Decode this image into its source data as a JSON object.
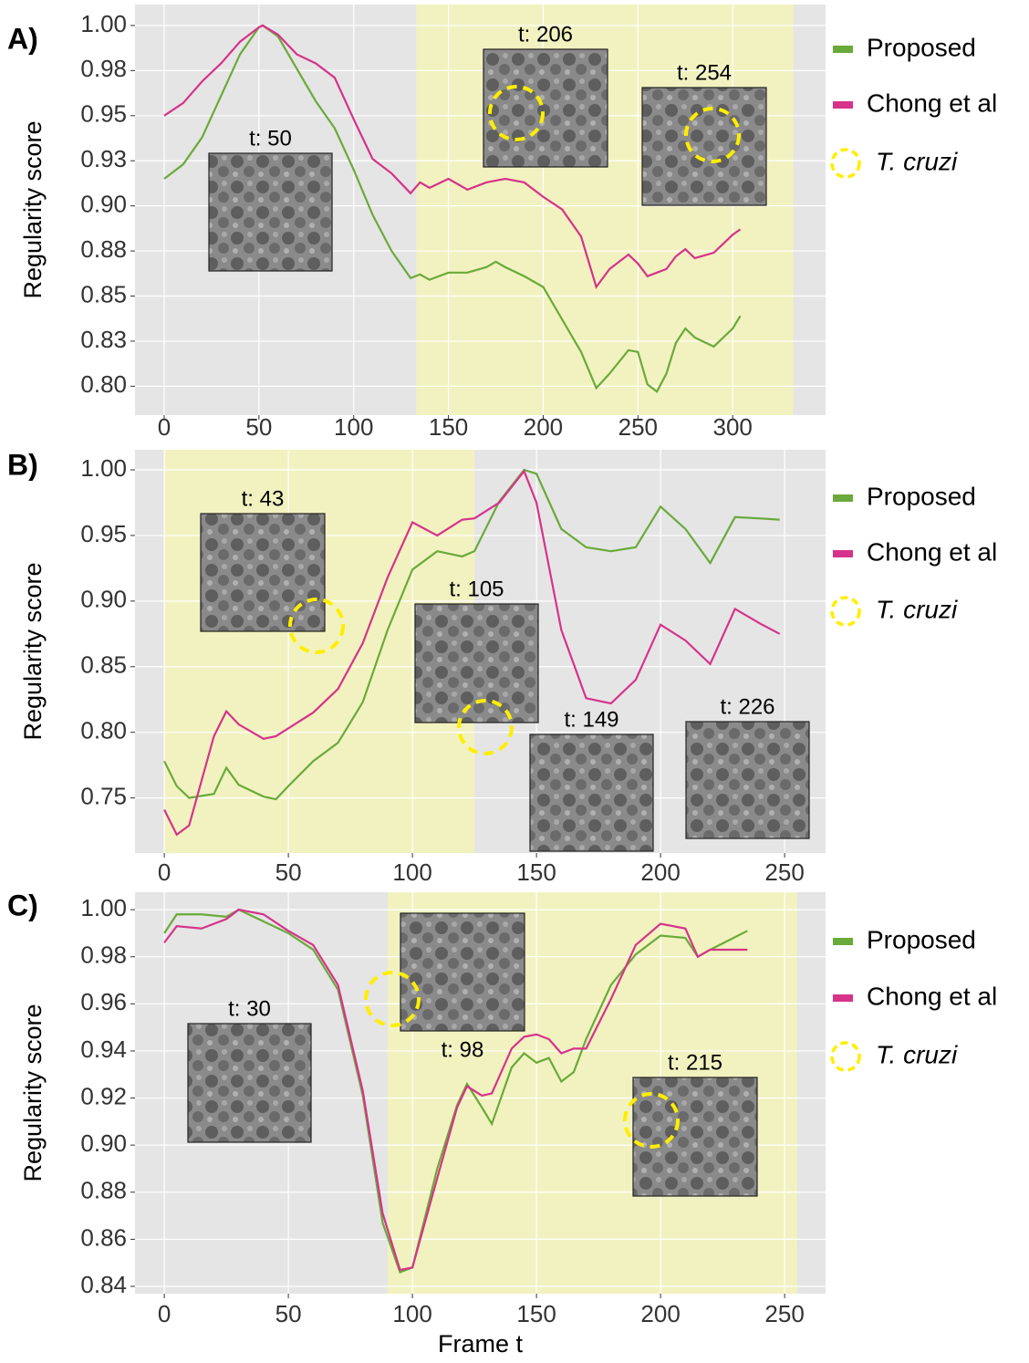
{
  "chart_data": [
    {
      "type": "line",
      "panel_label": "A)",
      "y_label": "Regularity score",
      "highlight_label": "T. cruzi",
      "highlight": [
        133,
        332
      ],
      "highlight_color": "#f2f2c0",
      "xlim": [
        -15.4,
        349
      ],
      "ylim": [
        0.784,
        1.0116
      ],
      "xticks": [
        0,
        50,
        100,
        150,
        200,
        250,
        300
      ],
      "yticks": [
        {
          "value": 0.8,
          "label": "0.80"
        },
        {
          "value": 0.825,
          "label": "0.83"
        },
        {
          "value": 0.85,
          "label": "0.85"
        },
        {
          "value": 0.875,
          "label": "0.88"
        },
        {
          "value": 0.9,
          "label": "0.90"
        },
        {
          "value": 0.925,
          "label": "0.93"
        },
        {
          "value": 0.95,
          "label": "0.95"
        },
        {
          "value": 0.975,
          "label": "0.98"
        },
        {
          "value": 1,
          "label": "1.00"
        }
      ],
      "grid": true,
      "insets": [
        {
          "label": "t: 50"
        },
        {
          "label": "t: 206"
        },
        {
          "label": "t: 254"
        }
      ],
      "x": [
        0,
        10,
        20,
        30,
        40,
        50,
        52,
        60,
        70,
        80,
        90,
        100,
        110,
        120,
        130,
        135,
        140,
        150,
        160,
        170,
        175,
        180,
        190,
        200,
        210,
        220,
        228,
        235,
        245,
        250,
        255,
        260,
        265,
        270,
        275,
        280,
        290,
        300,
        304
      ],
      "series": [
        {
          "name": "Proposed",
          "color": "#6aaa3a",
          "values": [
            0.915,
            0.923,
            0.938,
            0.961,
            0.984,
            0.999,
            1.0,
            0.994,
            0.976,
            0.958,
            0.943,
            0.92,
            0.895,
            0.875,
            0.86,
            0.862,
            0.859,
            0.863,
            0.863,
            0.866,
            0.869,
            0.866,
            0.861,
            0.855,
            0.837,
            0.819,
            0.799,
            0.807,
            0.82,
            0.819,
            0.801,
            0.797,
            0.807,
            0.824,
            0.832,
            0.827,
            0.822,
            0.832,
            0.839
          ]
        },
        {
          "name": "Chong et al",
          "color": "#d6338a",
          "values": [
            0.95,
            0.957,
            0.969,
            0.979,
            0.991,
            0.999,
            1.0,
            0.995,
            0.984,
            0.979,
            0.971,
            0.948,
            0.926,
            0.918,
            0.907,
            0.913,
            0.91,
            0.915,
            0.909,
            0.913,
            0.914,
            0.915,
            0.913,
            0.905,
            0.898,
            0.883,
            0.855,
            0.865,
            0.873,
            0.868,
            0.861,
            0.863,
            0.865,
            0.872,
            0.876,
            0.871,
            0.874,
            0.884,
            0.887
          ]
        }
      ]
    },
    {
      "type": "line",
      "panel_label": "B)",
      "y_label": "Regularity score",
      "highlight_label": "T. cruzi",
      "highlight": [
        0,
        125
      ],
      "highlight_color": "#f2f2c0",
      "xlim": [
        -11.8,
        266.5
      ],
      "ylim": [
        0.708,
        1.0153
      ],
      "xticks": [
        0,
        50,
        100,
        150,
        200,
        250
      ],
      "yticks": [
        0.75,
        {
          "value": 0.8,
          "label": "0.80"
        },
        0.85,
        {
          "value": 0.9,
          "label": "0.90"
        },
        0.95,
        {
          "value": 1,
          "label": "1.00"
        }
      ],
      "grid": true,
      "insets": [
        {
          "label": "t: 43"
        },
        {
          "label": "t: 105"
        },
        {
          "label": "t: 149"
        },
        {
          "label": "t: 226"
        }
      ],
      "x": [
        0,
        5,
        10,
        20,
        25,
        30,
        40,
        45,
        50,
        60,
        70,
        80,
        90,
        100,
        110,
        120,
        125,
        135,
        145,
        150,
        160,
        170,
        180,
        190,
        200,
        210,
        220,
        230,
        240,
        248
      ],
      "series": [
        {
          "name": "Proposed",
          "color": "#6aaa3a",
          "values": [
            0.778,
            0.759,
            0.75,
            0.753,
            0.773,
            0.76,
            0.751,
            0.749,
            0.759,
            0.778,
            0.792,
            0.823,
            0.878,
            0.924,
            0.938,
            0.934,
            0.938,
            0.976,
            1.0,
            0.997,
            0.955,
            0.941,
            0.938,
            0.941,
            0.972,
            0.955,
            0.929,
            0.964,
            0.963,
            0.962
          ]
        },
        {
          "name": "Chong et al",
          "color": "#d6338a",
          "values": [
            0.741,
            0.722,
            0.729,
            0.797,
            0.816,
            0.806,
            0.795,
            0.797,
            0.803,
            0.815,
            0.833,
            0.868,
            0.918,
            0.96,
            0.95,
            0.962,
            0.963,
            0.975,
            0.999,
            0.975,
            0.878,
            0.826,
            0.822,
            0.84,
            0.882,
            0.87,
            0.852,
            0.894,
            0.883,
            0.875
          ]
        }
      ]
    },
    {
      "type": "line",
      "panel_label": "C)",
      "y_label": "Regularity score",
      "x_label": "Frame t",
      "highlight_label": "T. cruzi",
      "highlight": [
        90,
        255
      ],
      "highlight_color": "#f2f2c0",
      "xlim": [
        -11.8,
        266.5
      ],
      "ylim": [
        0.8369,
        1.0074
      ],
      "xticks": [
        0,
        50,
        100,
        150,
        200,
        250
      ],
      "yticks": [
        0.84,
        0.86,
        0.88,
        {
          "value": 0.9,
          "label": "0.90"
        },
        0.92,
        0.94,
        0.96,
        0.98,
        {
          "value": 1,
          "label": "1.00"
        }
      ],
      "grid": true,
      "insets": [
        {
          "label": "t: 30"
        },
        {
          "label": "t: 98"
        },
        {
          "label": "t: 215"
        }
      ],
      "x": [
        0,
        5,
        15,
        25,
        30,
        40,
        50,
        60,
        70,
        80,
        88,
        95,
        100,
        110,
        118,
        122,
        128,
        132,
        140,
        145,
        150,
        155,
        160,
        165,
        170,
        180,
        190,
        200,
        210,
        215,
        220,
        235
      ],
      "series": [
        {
          "name": "Proposed",
          "color": "#6aaa3a",
          "values": [
            0.99,
            0.998,
            0.998,
            0.997,
            1.0,
            0.995,
            0.99,
            0.983,
            0.966,
            0.921,
            0.867,
            0.846,
            0.848,
            0.89,
            0.917,
            0.926,
            0.916,
            0.909,
            0.933,
            0.939,
            0.935,
            0.937,
            0.927,
            0.931,
            0.945,
            0.968,
            0.981,
            0.989,
            0.988,
            0.98,
            0.983,
            0.991
          ]
        },
        {
          "name": "Chong et al",
          "color": "#d6338a",
          "values": [
            0.986,
            0.993,
            0.992,
            0.996,
            1.0,
            0.998,
            0.991,
            0.985,
            0.968,
            0.923,
            0.871,
            0.847,
            0.848,
            0.886,
            0.916,
            0.925,
            0.921,
            0.922,
            0.941,
            0.946,
            0.947,
            0.945,
            0.939,
            0.941,
            0.941,
            0.962,
            0.985,
            0.994,
            0.992,
            0.98,
            0.983,
            0.983
          ]
        }
      ]
    }
  ]
}
